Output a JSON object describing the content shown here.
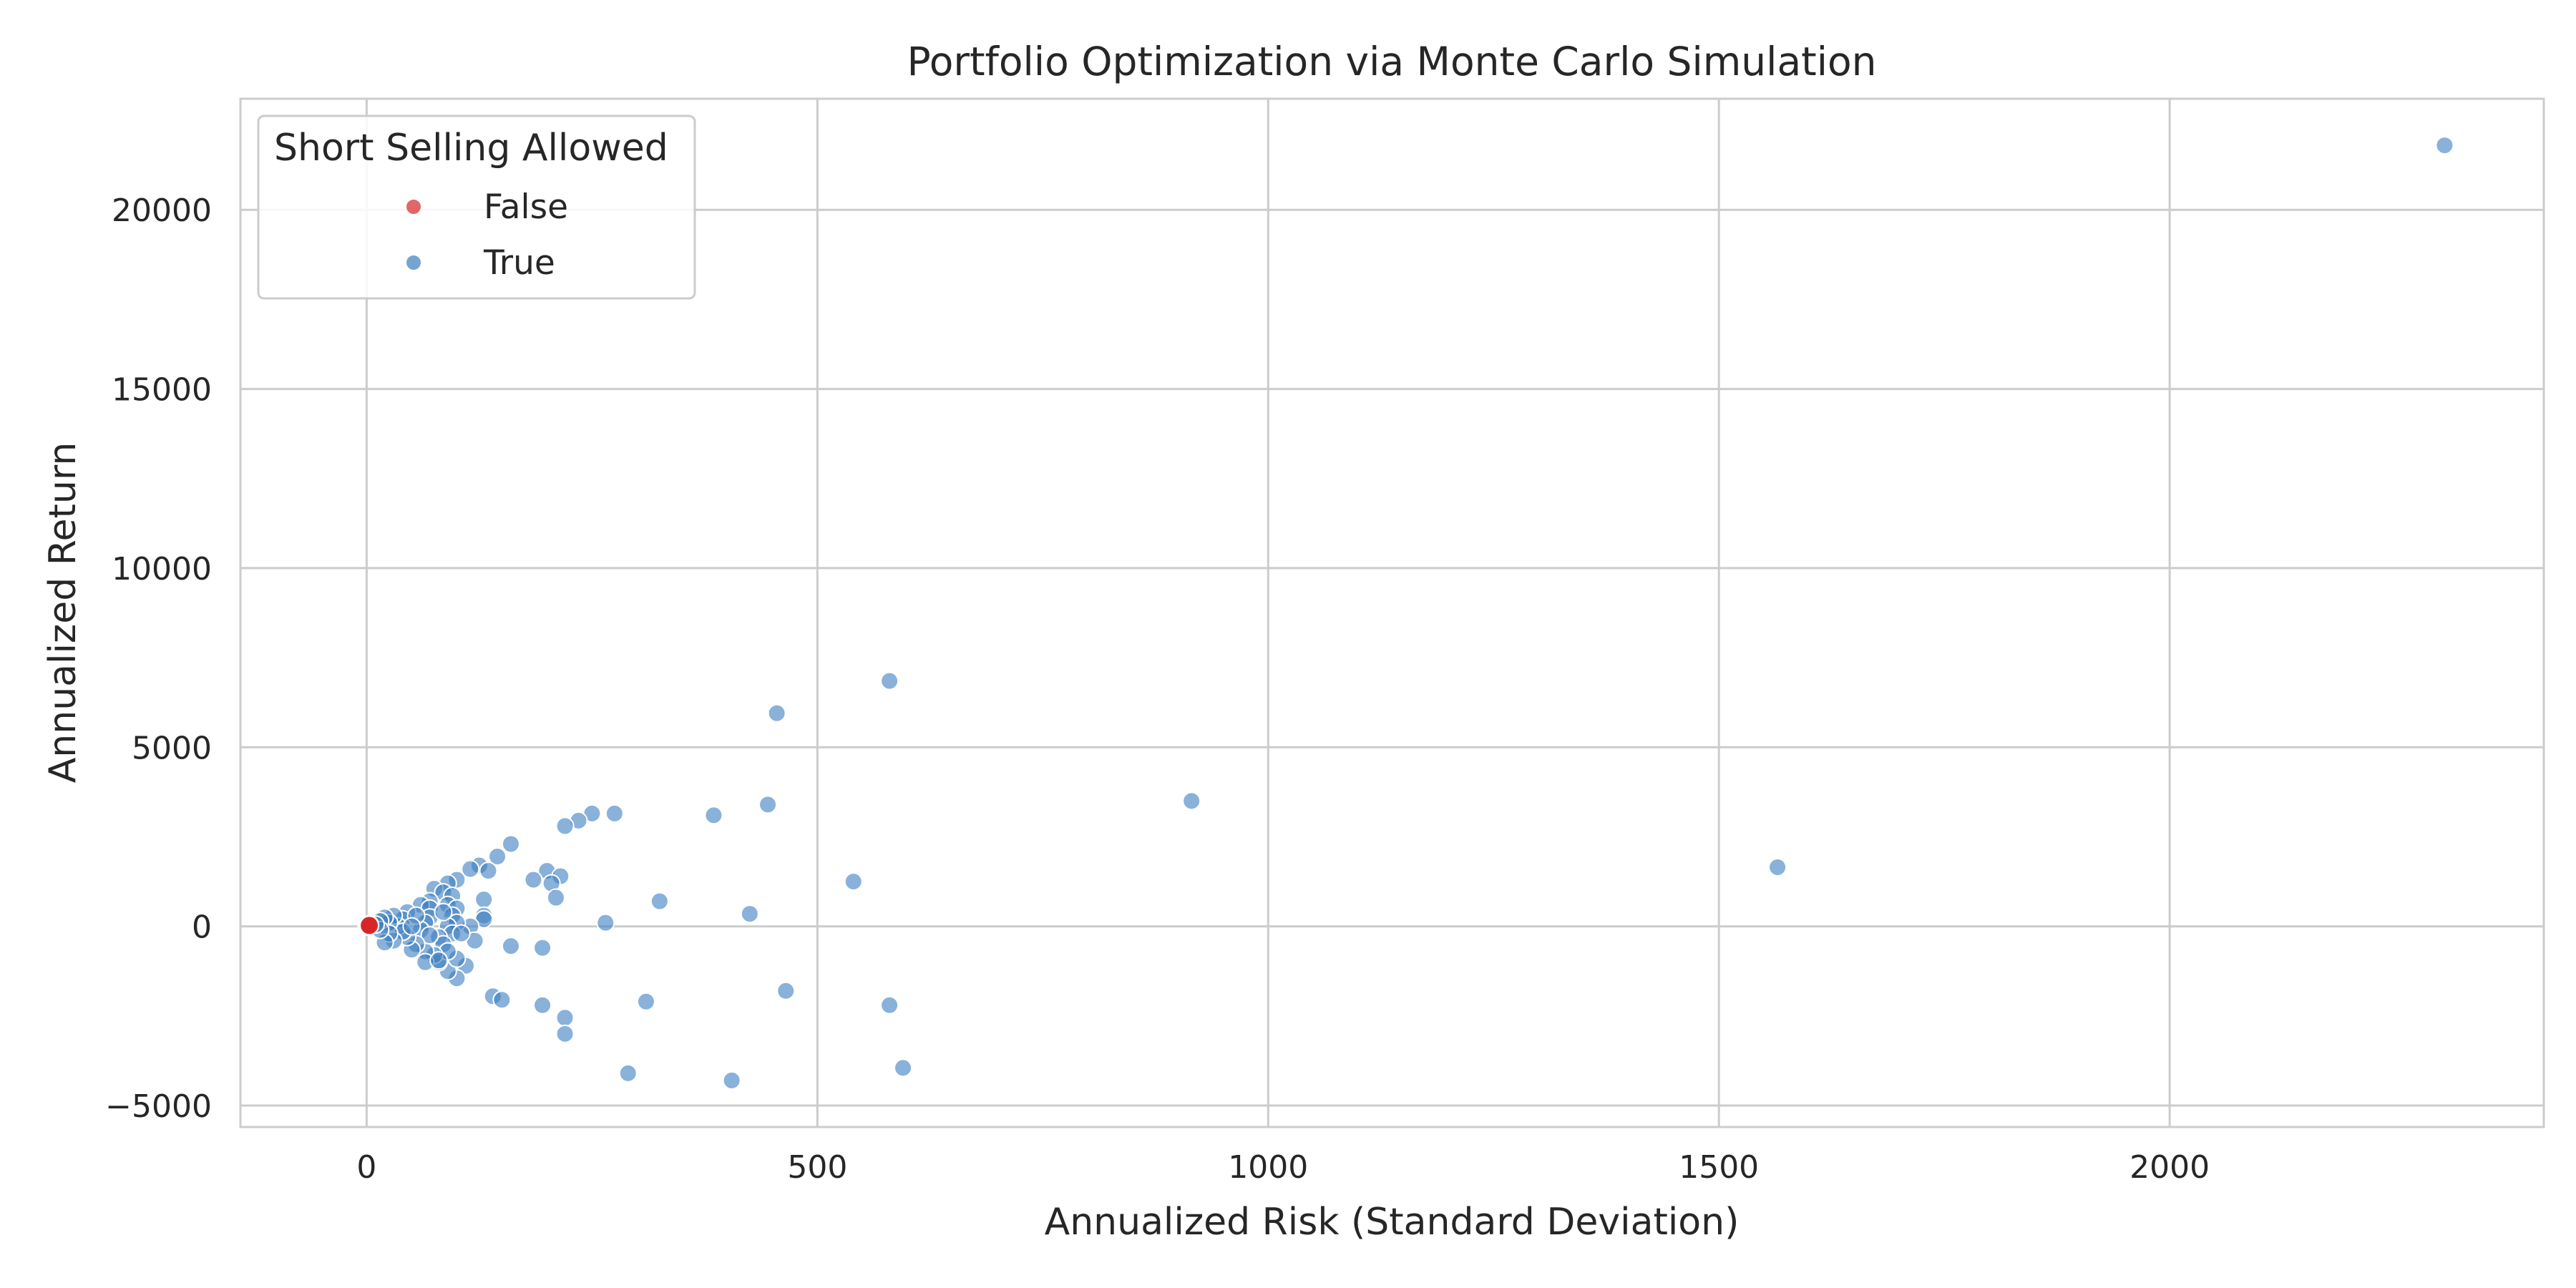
{
  "chart_data": {
    "type": "scatter",
    "title": "Portfolio Optimization via Monte Carlo Simulation",
    "xlabel": "Annualized Risk (Standard Deviation)",
    "ylabel": "Annualized Return",
    "xlim": [
      -140,
      2415
    ],
    "ylim": [
      -5600,
      23100
    ],
    "x_ticks": [
      0,
      500,
      1000,
      1500,
      2000
    ],
    "y_ticks": [
      -5000,
      0,
      5000,
      10000,
      15000,
      20000
    ],
    "x_tick_labels": [
      "0",
      "500",
      "1000",
      "1500",
      "2000"
    ],
    "y_tick_labels": [
      "−5000",
      "0",
      "5000",
      "10000",
      "15000",
      "20000"
    ],
    "grid": true,
    "legend": {
      "title": "Short Selling Allowed",
      "placement": "top-left",
      "entries": [
        {
          "label": "False",
          "color": "#d62728"
        },
        {
          "label": "True",
          "color": "#3a7dbf"
        }
      ]
    },
    "series": [
      {
        "name": "True",
        "color": "#3a7dbf",
        "points": [
          [
            2305,
            21800
          ],
          [
            580,
            6850
          ],
          [
            455,
            5950
          ],
          [
            915,
            3500
          ],
          [
            1565,
            1650
          ],
          [
            445,
            3400
          ],
          [
            385,
            3100
          ],
          [
            275,
            3150
          ],
          [
            250,
            3150
          ],
          [
            235,
            2950
          ],
          [
            220,
            2800
          ],
          [
            160,
            2300
          ],
          [
            145,
            1950
          ],
          [
            125,
            1700
          ],
          [
            115,
            1600
          ],
          [
            135,
            1550
          ],
          [
            200,
            1550
          ],
          [
            215,
            1400
          ],
          [
            185,
            1300
          ],
          [
            205,
            1200
          ],
          [
            540,
            1250
          ],
          [
            210,
            800
          ],
          [
            325,
            700
          ],
          [
            425,
            350
          ],
          [
            265,
            100
          ],
          [
            160,
            -550
          ],
          [
            195,
            -600
          ],
          [
            465,
            -1800
          ],
          [
            140,
            -1950
          ],
          [
            150,
            -2050
          ],
          [
            195,
            -2200
          ],
          [
            310,
            -2100
          ],
          [
            580,
            -2200
          ],
          [
            220,
            -2550
          ],
          [
            220,
            -3000
          ],
          [
            290,
            -4100
          ],
          [
            405,
            -4300
          ],
          [
            595,
            -3950
          ],
          [
            130,
            750
          ],
          [
            130,
            300
          ],
          [
            130,
            200
          ],
          [
            115,
            0
          ],
          [
            110,
            -1100
          ],
          [
            100,
            -1450
          ],
          [
            90,
            -1250
          ],
          [
            100,
            -900
          ],
          [
            80,
            -1000
          ],
          [
            100,
            1300
          ],
          [
            90,
            1200
          ],
          [
            75,
            1050
          ],
          [
            85,
            950
          ],
          [
            95,
            850
          ],
          [
            90,
            600
          ],
          [
            100,
            500
          ],
          [
            95,
            300
          ],
          [
            100,
            100
          ],
          [
            90,
            0
          ],
          [
            95,
            -200
          ],
          [
            80,
            -300
          ],
          [
            85,
            -500
          ],
          [
            90,
            -700
          ],
          [
            75,
            -800
          ],
          [
            65,
            -700
          ],
          [
            70,
            700
          ],
          [
            60,
            600
          ],
          [
            70,
            500
          ],
          [
            70,
            250
          ],
          [
            65,
            100
          ],
          [
            60,
            -100
          ],
          [
            70,
            -250
          ],
          [
            55,
            -500
          ],
          [
            50,
            -650
          ],
          [
            45,
            -300
          ],
          [
            45,
            400
          ],
          [
            40,
            200
          ],
          [
            35,
            0
          ],
          [
            40,
            -150
          ],
          [
            30,
            -400
          ],
          [
            30,
            300
          ],
          [
            25,
            100
          ],
          [
            25,
            -200
          ],
          [
            20,
            -450
          ],
          [
            20,
            250
          ],
          [
            15,
            150
          ],
          [
            15,
            -100
          ],
          [
            10,
            50
          ],
          [
            55,
            300
          ],
          [
            50,
            0
          ],
          [
            65,
            -1000
          ],
          [
            80,
            -950
          ],
          [
            85,
            400
          ],
          [
            120,
            -400
          ],
          [
            105,
            -200
          ]
        ]
      },
      {
        "name": "False",
        "color": "#d62728",
        "points": [
          [
            1,
            30
          ],
          [
            2,
            20
          ],
          [
            3,
            40
          ],
          [
            1,
            10
          ],
          [
            2,
            35
          ],
          [
            3,
            25
          ]
        ]
      }
    ]
  }
}
